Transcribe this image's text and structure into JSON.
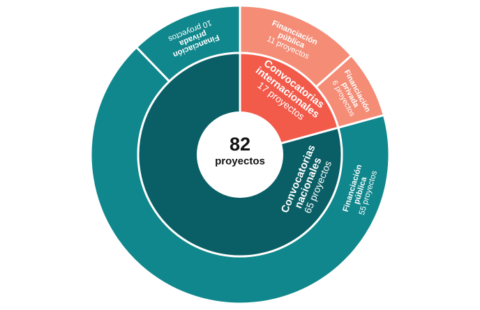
{
  "chart_data": {
    "type": "sunburst",
    "total": {
      "value": 82,
      "value_label": "82",
      "unit_label": "proyectos"
    },
    "inner": [
      {
        "name_lines": [
          "Convocatorias",
          "internacionales"
        ],
        "value": 17,
        "value_label": "17 proyectos",
        "color": "#f25a4a"
      },
      {
        "name_lines": [
          "Convocatorias",
          "nacionales"
        ],
        "value": 65,
        "value_label": "65 proyectos",
        "color": "#0a5f66"
      }
    ],
    "outer": [
      {
        "parent": "Convocatorias internacionales",
        "name_lines": [
          "Financiación",
          "pública"
        ],
        "value": 11,
        "value_label": "11 proyectos",
        "color": "#f48c76"
      },
      {
        "parent": "Convocatorias internacionales",
        "name_lines": [
          "Financiación",
          "privada"
        ],
        "value": 6,
        "value_label": "6 proyectos",
        "color": "#f48c76"
      },
      {
        "parent": "Convocatorias nacionales",
        "name_lines": [
          "Financiación",
          "pública"
        ],
        "value": 55,
        "value_label": "55 proyectos",
        "color": "#10878c"
      },
      {
        "parent": "Convocatorias nacionales",
        "name_lines": [
          "Financiación",
          "privada"
        ],
        "value": 10,
        "value_label": "10 proyectos",
        "color": "#10878c"
      }
    ]
  }
}
